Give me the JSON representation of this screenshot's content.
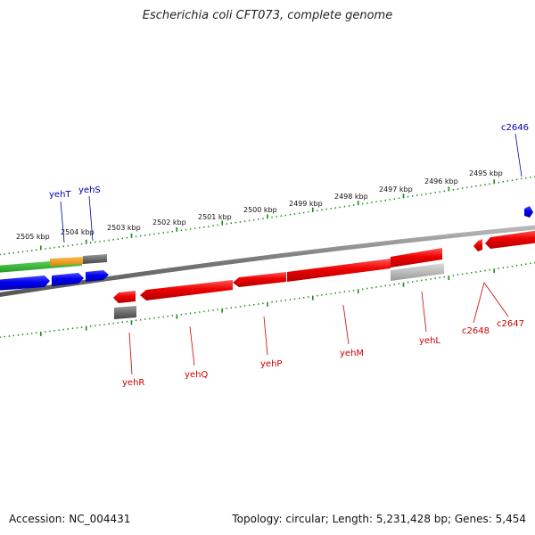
{
  "title": "Escherichia coli CFT073, complete genome",
  "footer": {
    "accession": "Accession: NC_004431",
    "summary": "Topology: circular; Length: 5,231,428 bp; Genes: 5,454"
  },
  "colors": {
    "forward_gene": "#0000ee",
    "reverse_gene": "#ee0000",
    "forward_label": "#0000aa",
    "reverse_label": "#cc0000",
    "tick": "#1a8a1a",
    "backbone": "#808080",
    "green_feature": "#33bb33",
    "orange_feature": "#ee9922",
    "gray_feature": "#666666",
    "light_gray_feature": "#bbbbbb"
  },
  "scale_labels": [
    "2505 kbp",
    "2504 kbp",
    "2503 kbp",
    "2502 kbp",
    "2501 kbp",
    "2500 kbp",
    "2499 kbp",
    "2498 kbp",
    "2497 kbp",
    "2496 kbp",
    "2495 kbp"
  ],
  "forward_gene_labels": [
    "yehT",
    "yehS",
    "c2646"
  ],
  "reverse_gene_labels": [
    "yehR",
    "yehQ",
    "yehP",
    "yehM",
    "yehL",
    "c2648",
    "c2647"
  ]
}
